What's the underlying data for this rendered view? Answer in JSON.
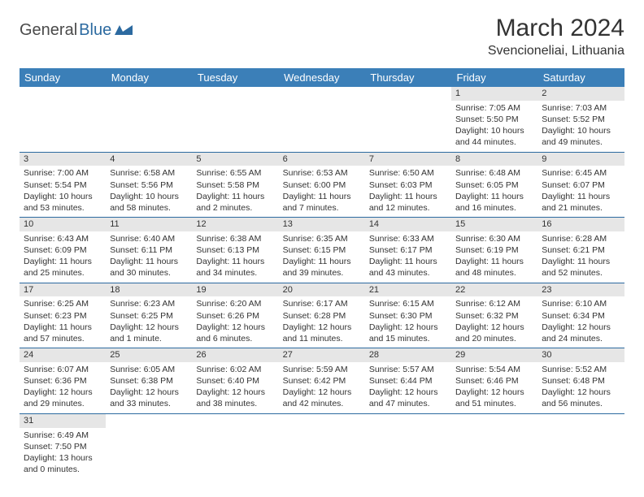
{
  "logo": {
    "text1": "General",
    "text2": "Blue"
  },
  "title": "March 2024",
  "location": "Svencioneliai, Lithuania",
  "colors": {
    "header_bg": "#3b7fb8",
    "header_text": "#ffffff",
    "row_border": "#2c6aa0",
    "daynum_bg": "#e6e6e6",
    "text": "#333333",
    "logo_dark": "#4a4a4a",
    "logo_blue": "#2c6aa0"
  },
  "weekdays": [
    "Sunday",
    "Monday",
    "Tuesday",
    "Wednesday",
    "Thursday",
    "Friday",
    "Saturday"
  ],
  "weeks": [
    [
      null,
      null,
      null,
      null,
      null,
      {
        "d": "1",
        "sr": "Sunrise: 7:05 AM",
        "ss": "Sunset: 5:50 PM",
        "dl1": "Daylight: 10 hours",
        "dl2": "and 44 minutes."
      },
      {
        "d": "2",
        "sr": "Sunrise: 7:03 AM",
        "ss": "Sunset: 5:52 PM",
        "dl1": "Daylight: 10 hours",
        "dl2": "and 49 minutes."
      }
    ],
    [
      {
        "d": "3",
        "sr": "Sunrise: 7:00 AM",
        "ss": "Sunset: 5:54 PM",
        "dl1": "Daylight: 10 hours",
        "dl2": "and 53 minutes."
      },
      {
        "d": "4",
        "sr": "Sunrise: 6:58 AM",
        "ss": "Sunset: 5:56 PM",
        "dl1": "Daylight: 10 hours",
        "dl2": "and 58 minutes."
      },
      {
        "d": "5",
        "sr": "Sunrise: 6:55 AM",
        "ss": "Sunset: 5:58 PM",
        "dl1": "Daylight: 11 hours",
        "dl2": "and 2 minutes."
      },
      {
        "d": "6",
        "sr": "Sunrise: 6:53 AM",
        "ss": "Sunset: 6:00 PM",
        "dl1": "Daylight: 11 hours",
        "dl2": "and 7 minutes."
      },
      {
        "d": "7",
        "sr": "Sunrise: 6:50 AM",
        "ss": "Sunset: 6:03 PM",
        "dl1": "Daylight: 11 hours",
        "dl2": "and 12 minutes."
      },
      {
        "d": "8",
        "sr": "Sunrise: 6:48 AM",
        "ss": "Sunset: 6:05 PM",
        "dl1": "Daylight: 11 hours",
        "dl2": "and 16 minutes."
      },
      {
        "d": "9",
        "sr": "Sunrise: 6:45 AM",
        "ss": "Sunset: 6:07 PM",
        "dl1": "Daylight: 11 hours",
        "dl2": "and 21 minutes."
      }
    ],
    [
      {
        "d": "10",
        "sr": "Sunrise: 6:43 AM",
        "ss": "Sunset: 6:09 PM",
        "dl1": "Daylight: 11 hours",
        "dl2": "and 25 minutes."
      },
      {
        "d": "11",
        "sr": "Sunrise: 6:40 AM",
        "ss": "Sunset: 6:11 PM",
        "dl1": "Daylight: 11 hours",
        "dl2": "and 30 minutes."
      },
      {
        "d": "12",
        "sr": "Sunrise: 6:38 AM",
        "ss": "Sunset: 6:13 PM",
        "dl1": "Daylight: 11 hours",
        "dl2": "and 34 minutes."
      },
      {
        "d": "13",
        "sr": "Sunrise: 6:35 AM",
        "ss": "Sunset: 6:15 PM",
        "dl1": "Daylight: 11 hours",
        "dl2": "and 39 minutes."
      },
      {
        "d": "14",
        "sr": "Sunrise: 6:33 AM",
        "ss": "Sunset: 6:17 PM",
        "dl1": "Daylight: 11 hours",
        "dl2": "and 43 minutes."
      },
      {
        "d": "15",
        "sr": "Sunrise: 6:30 AM",
        "ss": "Sunset: 6:19 PM",
        "dl1": "Daylight: 11 hours",
        "dl2": "and 48 minutes."
      },
      {
        "d": "16",
        "sr": "Sunrise: 6:28 AM",
        "ss": "Sunset: 6:21 PM",
        "dl1": "Daylight: 11 hours",
        "dl2": "and 52 minutes."
      }
    ],
    [
      {
        "d": "17",
        "sr": "Sunrise: 6:25 AM",
        "ss": "Sunset: 6:23 PM",
        "dl1": "Daylight: 11 hours",
        "dl2": "and 57 minutes."
      },
      {
        "d": "18",
        "sr": "Sunrise: 6:23 AM",
        "ss": "Sunset: 6:25 PM",
        "dl1": "Daylight: 12 hours",
        "dl2": "and 1 minute."
      },
      {
        "d": "19",
        "sr": "Sunrise: 6:20 AM",
        "ss": "Sunset: 6:26 PM",
        "dl1": "Daylight: 12 hours",
        "dl2": "and 6 minutes."
      },
      {
        "d": "20",
        "sr": "Sunrise: 6:17 AM",
        "ss": "Sunset: 6:28 PM",
        "dl1": "Daylight: 12 hours",
        "dl2": "and 11 minutes."
      },
      {
        "d": "21",
        "sr": "Sunrise: 6:15 AM",
        "ss": "Sunset: 6:30 PM",
        "dl1": "Daylight: 12 hours",
        "dl2": "and 15 minutes."
      },
      {
        "d": "22",
        "sr": "Sunrise: 6:12 AM",
        "ss": "Sunset: 6:32 PM",
        "dl1": "Daylight: 12 hours",
        "dl2": "and 20 minutes."
      },
      {
        "d": "23",
        "sr": "Sunrise: 6:10 AM",
        "ss": "Sunset: 6:34 PM",
        "dl1": "Daylight: 12 hours",
        "dl2": "and 24 minutes."
      }
    ],
    [
      {
        "d": "24",
        "sr": "Sunrise: 6:07 AM",
        "ss": "Sunset: 6:36 PM",
        "dl1": "Daylight: 12 hours",
        "dl2": "and 29 minutes."
      },
      {
        "d": "25",
        "sr": "Sunrise: 6:05 AM",
        "ss": "Sunset: 6:38 PM",
        "dl1": "Daylight: 12 hours",
        "dl2": "and 33 minutes."
      },
      {
        "d": "26",
        "sr": "Sunrise: 6:02 AM",
        "ss": "Sunset: 6:40 PM",
        "dl1": "Daylight: 12 hours",
        "dl2": "and 38 minutes."
      },
      {
        "d": "27",
        "sr": "Sunrise: 5:59 AM",
        "ss": "Sunset: 6:42 PM",
        "dl1": "Daylight: 12 hours",
        "dl2": "and 42 minutes."
      },
      {
        "d": "28",
        "sr": "Sunrise: 5:57 AM",
        "ss": "Sunset: 6:44 PM",
        "dl1": "Daylight: 12 hours",
        "dl2": "and 47 minutes."
      },
      {
        "d": "29",
        "sr": "Sunrise: 5:54 AM",
        "ss": "Sunset: 6:46 PM",
        "dl1": "Daylight: 12 hours",
        "dl2": "and 51 minutes."
      },
      {
        "d": "30",
        "sr": "Sunrise: 5:52 AM",
        "ss": "Sunset: 6:48 PM",
        "dl1": "Daylight: 12 hours",
        "dl2": "and 56 minutes."
      }
    ],
    [
      {
        "d": "31",
        "sr": "Sunrise: 6:49 AM",
        "ss": "Sunset: 7:50 PM",
        "dl1": "Daylight: 13 hours",
        "dl2": "and 0 minutes."
      },
      null,
      null,
      null,
      null,
      null,
      null
    ]
  ]
}
